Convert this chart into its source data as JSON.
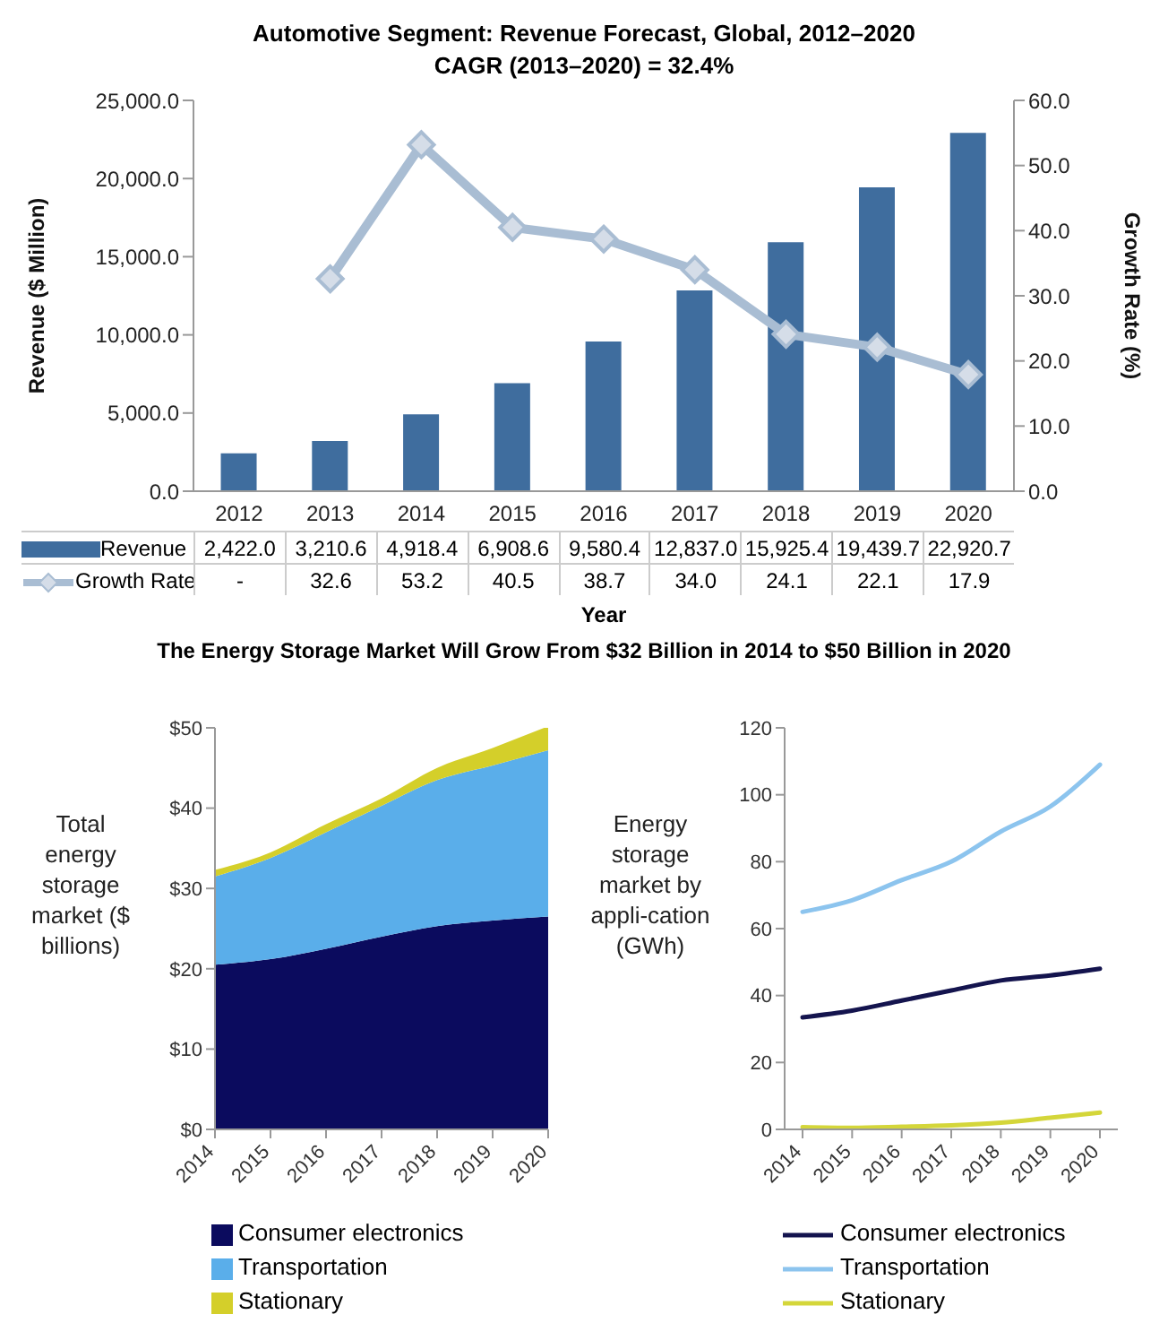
{
  "chart_data": [
    {
      "type": "bar",
      "title": "Automotive Segment: Revenue Forecast, Global, 2012–2020",
      "subtitle": "CAGR (2013–2020) = 32.4%",
      "xlabel": "Year",
      "ylabel": "Revenue ($ Million)",
      "y2label": "Growth Rate (%)",
      "categories": [
        "2012",
        "2013",
        "2014",
        "2015",
        "2016",
        "2017",
        "2018",
        "2019",
        "2020"
      ],
      "series": [
        {
          "name": "Revenue",
          "color": "#3f6d9e",
          "values": [
            2422.0,
            3210.6,
            4918.4,
            6908.6,
            9580.4,
            12837.0,
            15925.4,
            19439.7,
            22920.7
          ],
          "value_labels": [
            "2,422.0",
            "3,210.6",
            "4,918.4",
            "6,908.6",
            "9,580.4",
            "12,837.0",
            "15,925.4",
            "19,439.7",
            "22,920.7"
          ]
        },
        {
          "name": "Growth Rate",
          "type": "line",
          "axis": "y2",
          "marker": "diamond",
          "color": "#a9bdd3",
          "values": [
            null,
            32.6,
            53.2,
            40.5,
            38.7,
            34.0,
            24.1,
            22.1,
            17.9
          ],
          "value_labels": [
            "-",
            "32.6",
            "53.2",
            "40.5",
            "38.7",
            "34.0",
            "24.1",
            "22.1",
            "17.9"
          ]
        }
      ],
      "ylim": [
        0,
        25000
      ],
      "yticks": [
        {
          "value": 0,
          "label": "0.0"
        },
        {
          "value": 5000,
          "label": "5,000.0"
        },
        {
          "value": 10000,
          "label": "10,000.0"
        },
        {
          "value": 15000,
          "label": "15,000.0"
        },
        {
          "value": 20000,
          "label": "20,000.0"
        },
        {
          "value": 25000,
          "label": "25,000.0"
        }
      ],
      "y2lim": [
        0,
        60
      ],
      "y2ticks": [
        {
          "value": 0,
          "label": "0.0"
        },
        {
          "value": 10,
          "label": "10.0"
        },
        {
          "value": 20,
          "label": "20.0"
        },
        {
          "value": 30,
          "label": "30.0"
        },
        {
          "value": 40,
          "label": "40.0"
        },
        {
          "value": 50,
          "label": "50.0"
        },
        {
          "value": 60,
          "label": "60.0"
        }
      ],
      "legend": "bottom left",
      "grid": false
    },
    {
      "type": "area",
      "stacked": true,
      "title": "The Energy Storage Market Will Grow From $32 Billion in 2014 to $50 Billion in 2020",
      "ylabel": "Total energy storage market ($ billions)",
      "categories": [
        "2014",
        "2015",
        "2016",
        "2017",
        "2018",
        "2019",
        "2020"
      ],
      "series": [
        {
          "name": "Consumer electronics",
          "color": "#0b0b5e",
          "values": [
            20.5,
            21.2,
            22.5,
            24.0,
            25.3,
            26.0,
            26.5
          ]
        },
        {
          "name": "Transportation",
          "color": "#5aaeea",
          "values": [
            11.0,
            12.6,
            14.5,
            16.3,
            18.2,
            19.3,
            20.7
          ]
        },
        {
          "name": "Stationary",
          "color": "#d4cf2a",
          "values": [
            0.8,
            0.7,
            1.0,
            0.9,
            1.5,
            2.2,
            3.0
          ]
        }
      ],
      "ylim": [
        0,
        50
      ],
      "yticks": [
        {
          "value": 0,
          "label": "$0"
        },
        {
          "value": 10,
          "label": "$10"
        },
        {
          "value": 20,
          "label": "$20"
        },
        {
          "value": 30,
          "label": "$30"
        },
        {
          "value": 40,
          "label": "$40"
        },
        {
          "value": 50,
          "label": "$50"
        }
      ],
      "legend": "bottom",
      "grid": false
    },
    {
      "type": "line",
      "ylabel": "Energy storage market by appli-cation (GWh)",
      "categories": [
        "2014",
        "2015",
        "2016",
        "2017",
        "2018",
        "2019",
        "2020"
      ],
      "series": [
        {
          "name": "Consumer electronics",
          "color": "#14144e",
          "values": [
            33.5,
            35.5,
            38.5,
            41.5,
            44.5,
            46.0,
            48.0
          ]
        },
        {
          "name": "Transportation",
          "color": "#8cc4ee",
          "values": [
            65.0,
            68.5,
            74.5,
            80.0,
            89.0,
            96.5,
            109.0
          ]
        },
        {
          "name": "Stationary",
          "color": "#d4d63a",
          "values": [
            0.7,
            0.5,
            0.8,
            1.2,
            2.0,
            3.5,
            5.0
          ]
        }
      ],
      "ylim": [
        0,
        120
      ],
      "yticks": [
        0,
        20,
        40,
        60,
        80,
        100,
        120
      ],
      "legend": "bottom",
      "grid": false
    }
  ]
}
